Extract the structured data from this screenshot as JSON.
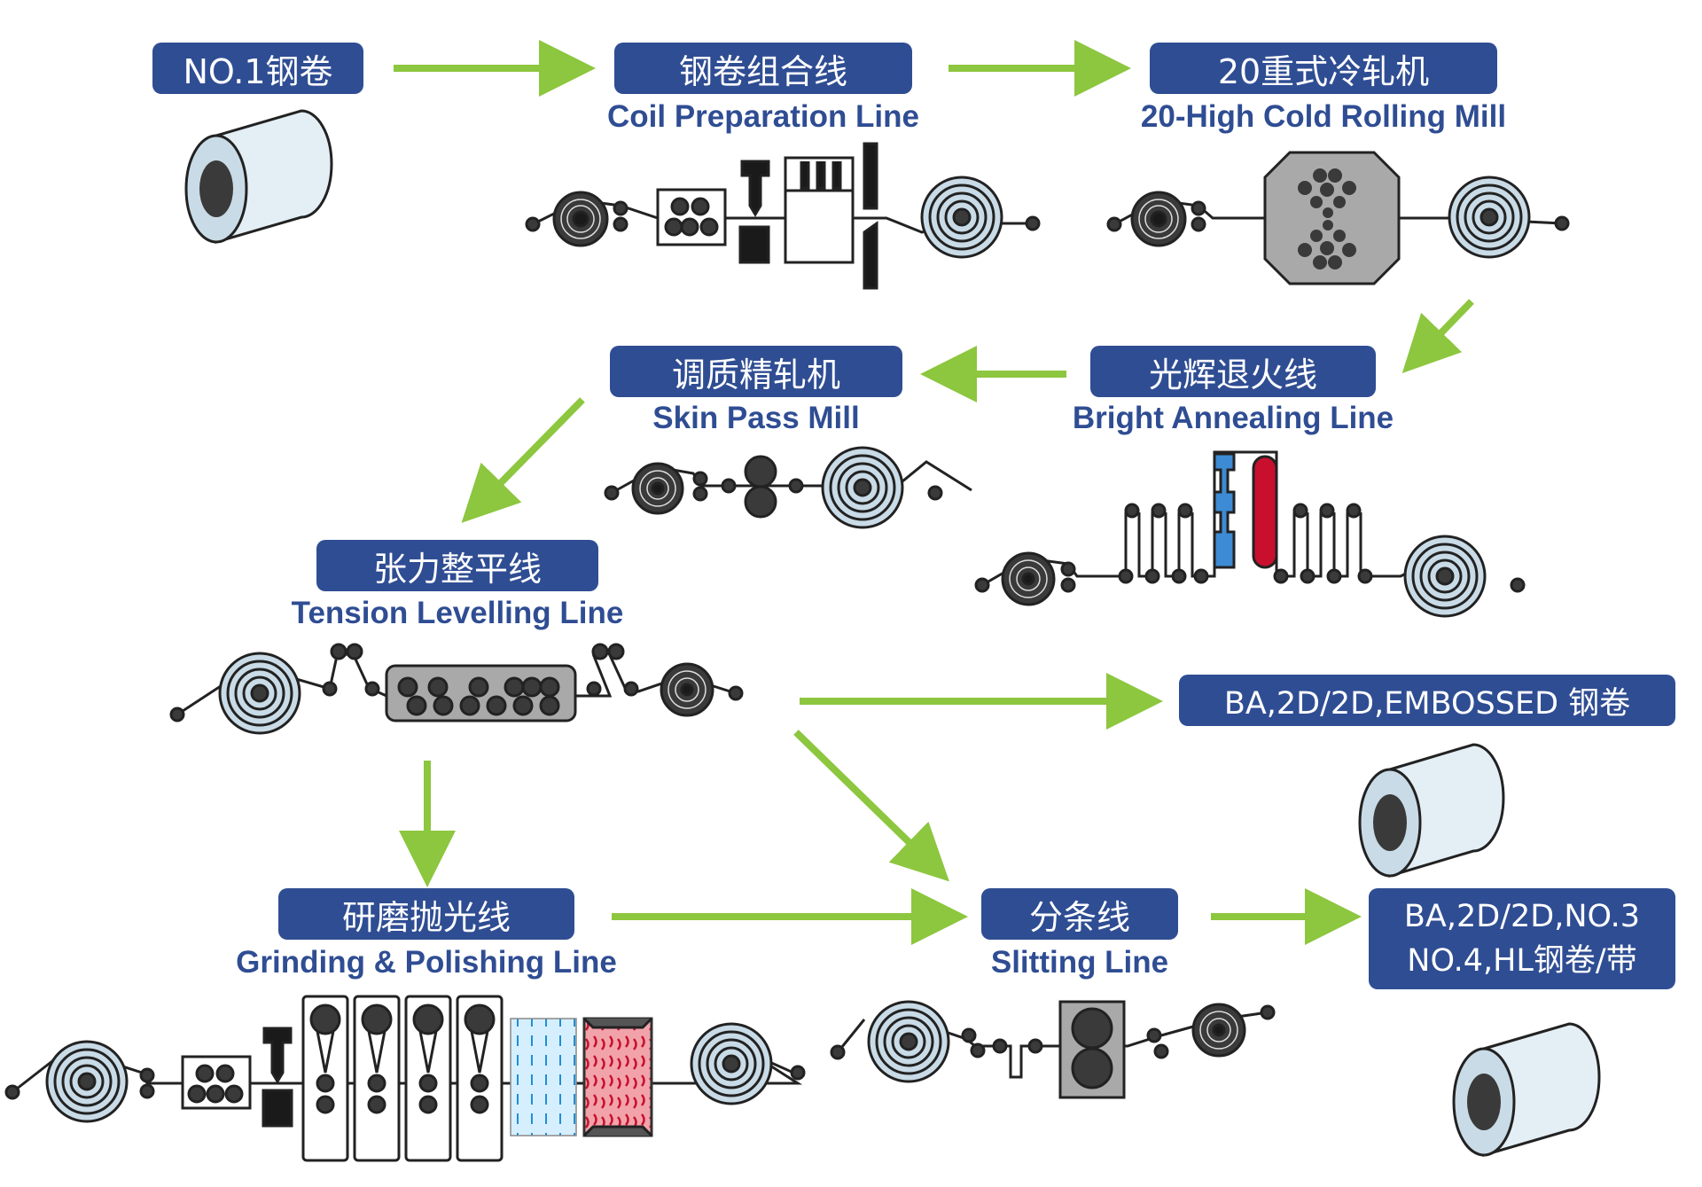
{
  "nodes": {
    "coil_input": {
      "zh": "NO.1钢卷"
    },
    "coil_prep": {
      "zh": "钢卷组合线",
      "en": "Coil Preparation Line"
    },
    "cold_rolling": {
      "zh": "20重式冷轧机",
      "en": "20-High Cold Rolling Mill"
    },
    "bright_annealing": {
      "zh": "光辉退火线",
      "en": "Bright Annealing Line"
    },
    "skin_pass": {
      "zh": "调质精轧机",
      "en": "Skin Pass Mill"
    },
    "tension_levelling": {
      "zh": "张力整平线",
      "en": "Tension Levelling Line"
    },
    "grinding": {
      "zh": "研磨抛光线",
      "en": "Grinding & Polishing Line"
    },
    "slitting": {
      "zh": "分条线",
      "en": "Slitting Line"
    },
    "output_coils": {
      "zh": "BA,2D/2D,EMBOSSED 钢卷"
    },
    "output_strip": {
      "line1": "BA,2D/2D,NO.3",
      "line2": "NO.4,HL钢卷/带"
    }
  },
  "colors": {
    "label_bg": "#2f4d93",
    "label_text": "#ffffff",
    "english_text": "#2f4d93",
    "arrow": "#8dc63f",
    "coil_face": "#c9dbe6",
    "roll": "#3a3a3a",
    "cooling": "#3d8bd4",
    "heating": "#c8102e",
    "machine_body": "#a9a9a9"
  }
}
